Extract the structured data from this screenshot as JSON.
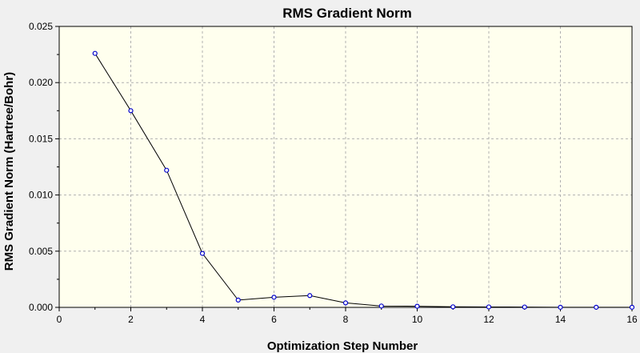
{
  "chart_data": {
    "type": "line",
    "title": "RMS Gradient Norm",
    "xlabel": "Optimization Step Number",
    "ylabel": "RMS Gradient Norm (Hartree/Bohr)",
    "xlim": [
      0,
      16
    ],
    "ylim": [
      0.0,
      0.025
    ],
    "x_ticks": [
      "0",
      "2",
      "4",
      "6",
      "8",
      "10",
      "12",
      "14",
      "16"
    ],
    "y_ticks": [
      "0.000",
      "0.005",
      "0.010",
      "0.015",
      "0.020",
      "0.025"
    ],
    "grid": true,
    "legend": "none",
    "colors": {
      "plot_background": "#ffffee",
      "page_background": "#f0f0f0",
      "line": "#000000",
      "marker_edge": "#0000cc",
      "grid": "#b0b0b0"
    },
    "series": [
      {
        "x": [
          1,
          2,
          3,
          4,
          5,
          6,
          7,
          8,
          9,
          10,
          11,
          12,
          13,
          14,
          15,
          16
        ],
        "values": [
          0.0226,
          0.0175,
          0.0122,
          0.0048,
          0.00065,
          0.0009,
          0.00105,
          0.0004,
          0.00012,
          0.0001,
          5e-05,
          4e-05,
          3e-05,
          1e-05,
          1e-05,
          1e-05
        ]
      }
    ]
  }
}
